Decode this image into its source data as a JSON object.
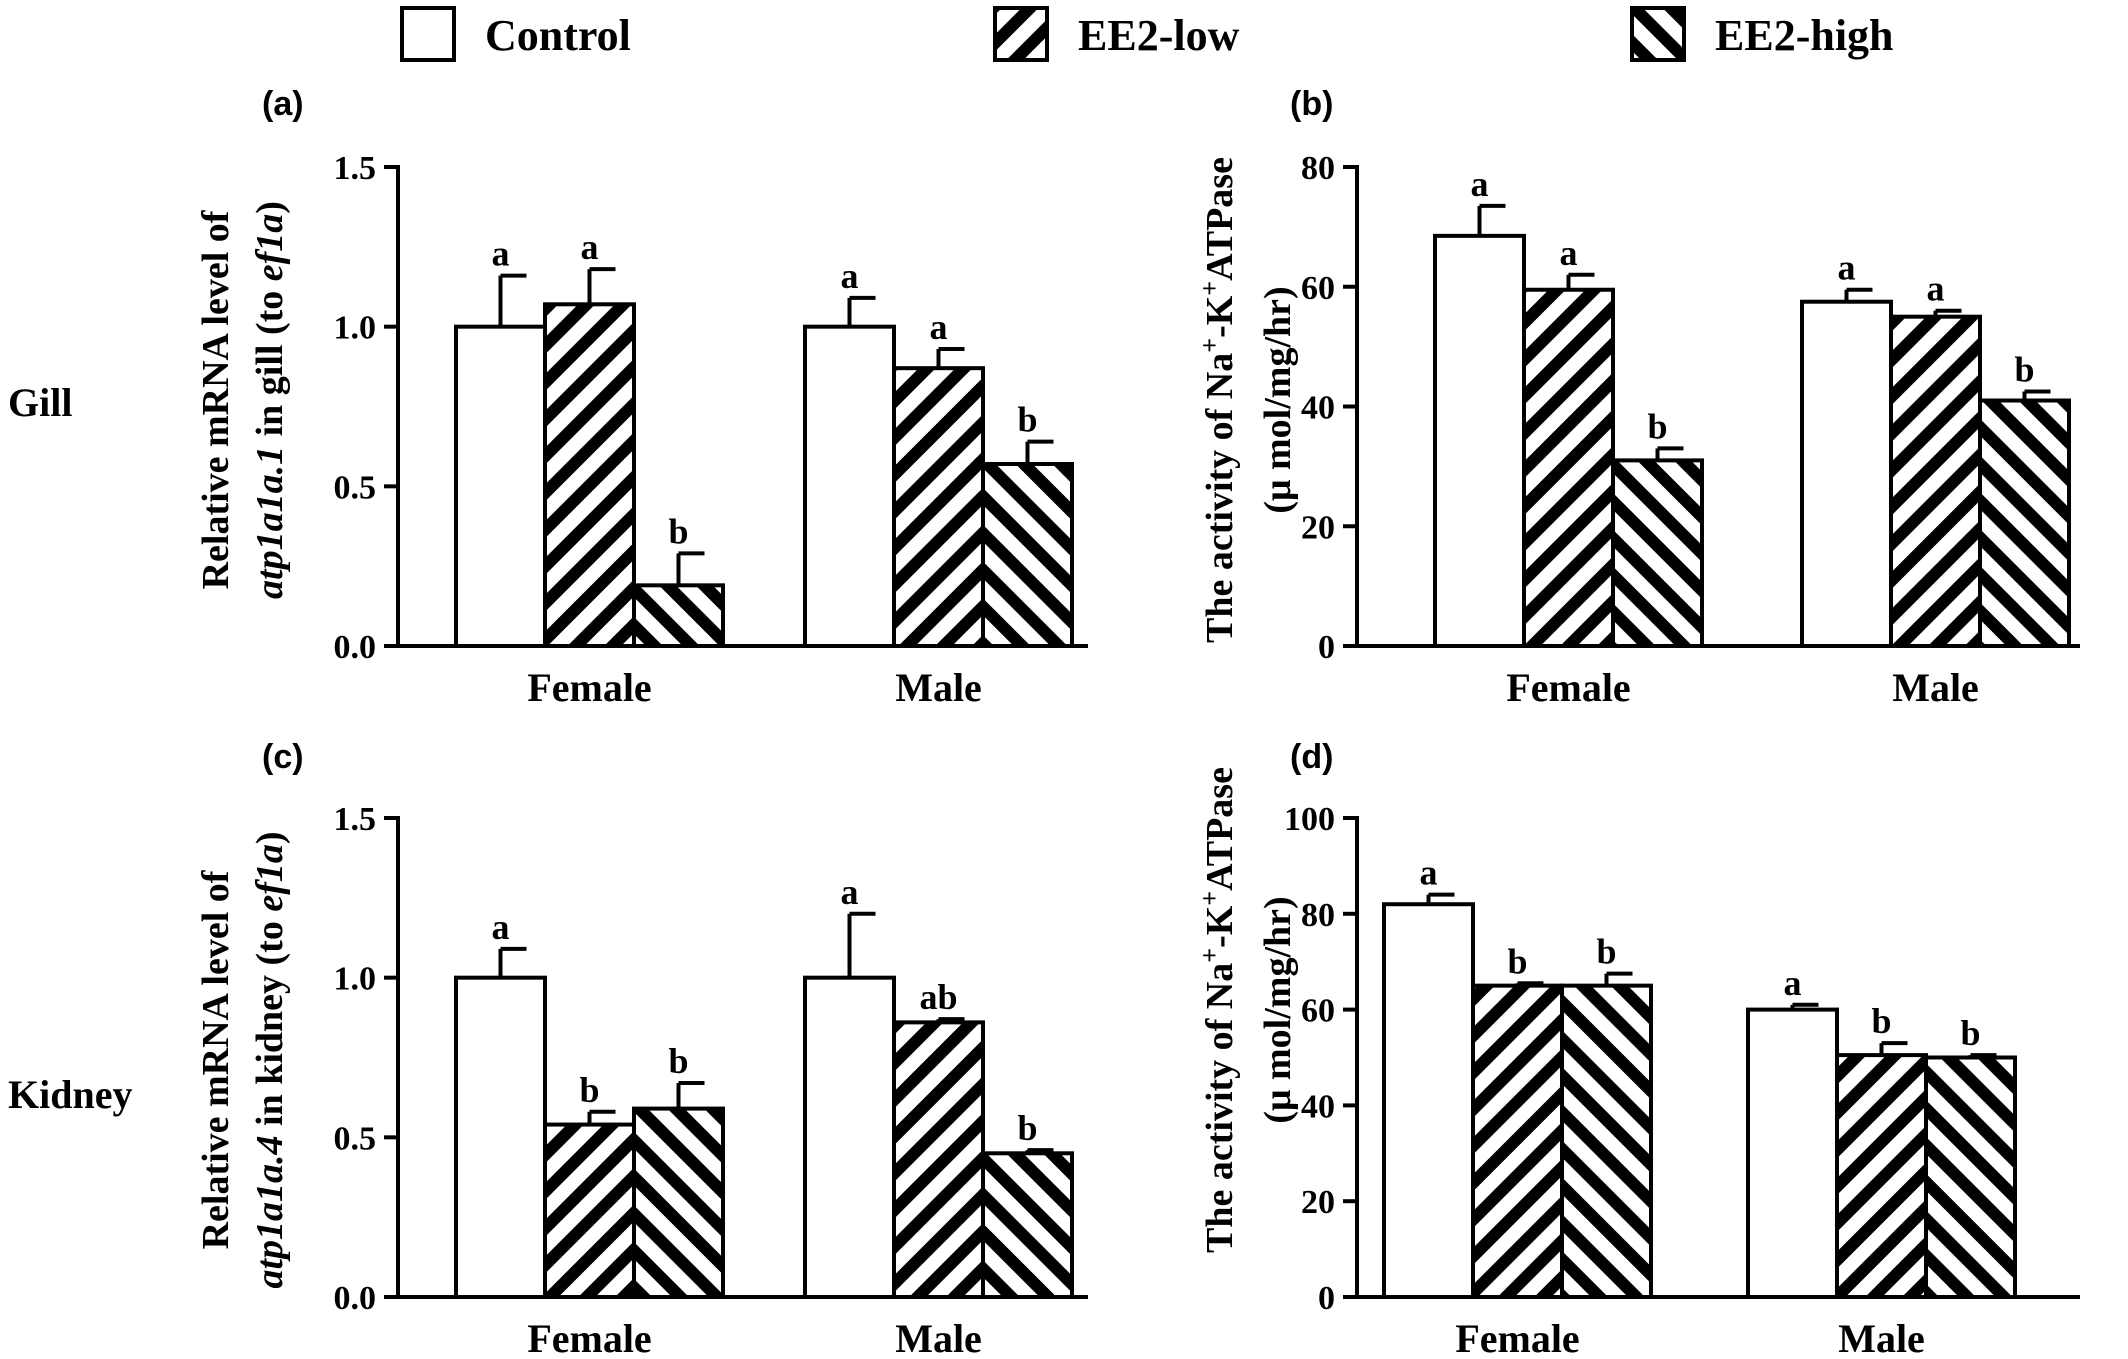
{
  "legend": {
    "items": [
      {
        "name": "Control",
        "pattern": "none"
      },
      {
        "name": "EE2-low",
        "pattern": "slash"
      },
      {
        "name": "EE2-high",
        "pattern": "backslash"
      }
    ]
  },
  "rows": [
    "Gill",
    "Kidney"
  ],
  "chart_data": [
    {
      "panel": "(a)",
      "type": "bar",
      "categories": [
        "Female",
        "Male"
      ],
      "ylabel_lines": [
        [
          {
            "t": "Relative mRNA level of",
            "i": false
          }
        ],
        [
          {
            "t": "atp1a1a.1",
            "i": true
          },
          {
            "t": " in gill (to ",
            "i": false
          },
          {
            "t": "ef1a",
            "i": true
          },
          {
            "t": ")",
            "i": false
          }
        ]
      ],
      "ylim": [
        0,
        1.5
      ],
      "yticks": [
        "0.0",
        "0.5",
        "1.0",
        "1.5"
      ],
      "series": [
        {
          "name": "Control",
          "values": [
            1.0,
            1.0
          ],
          "errors": [
            0.16,
            0.09
          ],
          "labels": [
            "a",
            "a"
          ]
        },
        {
          "name": "EE2-low",
          "values": [
            1.07,
            0.87
          ],
          "errors": [
            0.11,
            0.06
          ],
          "labels": [
            "a",
            "a"
          ]
        },
        {
          "name": "EE2-high",
          "values": [
            0.19,
            0.57
          ],
          "errors": [
            0.1,
            0.07
          ],
          "labels": [
            "b",
            "b"
          ]
        }
      ]
    },
    {
      "panel": "(b)",
      "type": "bar",
      "categories": [
        "Female",
        "Male"
      ],
      "ylabel_lines": [
        [
          {
            "t": "The activity of Na",
            "i": false
          },
          {
            "t": "+",
            "i": false,
            "sup": true
          },
          {
            "t": "-K",
            "i": false
          },
          {
            "t": "+",
            "i": false,
            "sup": true
          },
          {
            "t": "ATPase",
            "i": false
          }
        ],
        [
          {
            "t": "(μ mol/mg/hr)",
            "i": false
          }
        ]
      ],
      "ylim": [
        0,
        80
      ],
      "yticks": [
        "0",
        "20",
        "40",
        "60",
        "80"
      ],
      "series": [
        {
          "name": "Control",
          "values": [
            68.5,
            57.5
          ],
          "errors": [
            5,
            2
          ],
          "labels": [
            "a",
            "a"
          ]
        },
        {
          "name": "EE2-low",
          "values": [
            59.5,
            55
          ],
          "errors": [
            2.5,
            1
          ],
          "labels": [
            "a",
            "a"
          ]
        },
        {
          "name": "EE2-high",
          "values": [
            31,
            41
          ],
          "errors": [
            2,
            1.5
          ],
          "labels": [
            "b",
            "b"
          ]
        }
      ]
    },
    {
      "panel": "(c)",
      "type": "bar",
      "categories": [
        "Female",
        "Male"
      ],
      "ylabel_lines": [
        [
          {
            "t": "Relative mRNA level of",
            "i": false
          }
        ],
        [
          {
            "t": "atp1a1a.4",
            "i": true
          },
          {
            "t": " in kidney (to ",
            "i": false
          },
          {
            "t": "ef1a",
            "i": true
          },
          {
            "t": ")",
            "i": false
          }
        ]
      ],
      "ylim": [
        0,
        1.5
      ],
      "yticks": [
        "0.0",
        "0.5",
        "1.0",
        "1.5"
      ],
      "series": [
        {
          "name": "Control",
          "values": [
            1.0,
            1.0
          ],
          "errors": [
            0.09,
            0.2
          ],
          "labels": [
            "a",
            "a"
          ]
        },
        {
          "name": "EE2-low",
          "values": [
            0.54,
            0.86
          ],
          "errors": [
            0.04,
            0.01
          ],
          "labels": [
            "b",
            "ab"
          ]
        },
        {
          "name": "EE2-high",
          "values": [
            0.59,
            0.45
          ],
          "errors": [
            0.08,
            0.01
          ],
          "labels": [
            "b",
            "b"
          ]
        }
      ]
    },
    {
      "panel": "(d)",
      "type": "bar",
      "categories": [
        "Female",
        "Male"
      ],
      "ylabel_lines": [
        [
          {
            "t": "The activity of Na",
            "i": false
          },
          {
            "t": "+",
            "i": false,
            "sup": true
          },
          {
            "t": "-K",
            "i": false
          },
          {
            "t": "+",
            "i": false,
            "sup": true
          },
          {
            "t": "ATPase",
            "i": false
          }
        ],
        [
          {
            "t": "(μ mol/mg/hr)",
            "i": false
          }
        ]
      ],
      "ylim": [
        0,
        100
      ],
      "yticks": [
        "0",
        "20",
        "40",
        "60",
        "80",
        "100"
      ],
      "series": [
        {
          "name": "Control",
          "values": [
            82,
            60
          ],
          "errors": [
            2,
            1
          ],
          "labels": [
            "a",
            "a"
          ]
        },
        {
          "name": "EE2-low",
          "values": [
            65,
            50.5
          ],
          "errors": [
            0.5,
            2.5
          ],
          "labels": [
            "b",
            "b"
          ]
        },
        {
          "name": "EE2-high",
          "values": [
            65,
            50
          ],
          "errors": [
            2.5,
            0.5
          ],
          "labels": [
            "b",
            "b"
          ]
        }
      ]
    }
  ]
}
